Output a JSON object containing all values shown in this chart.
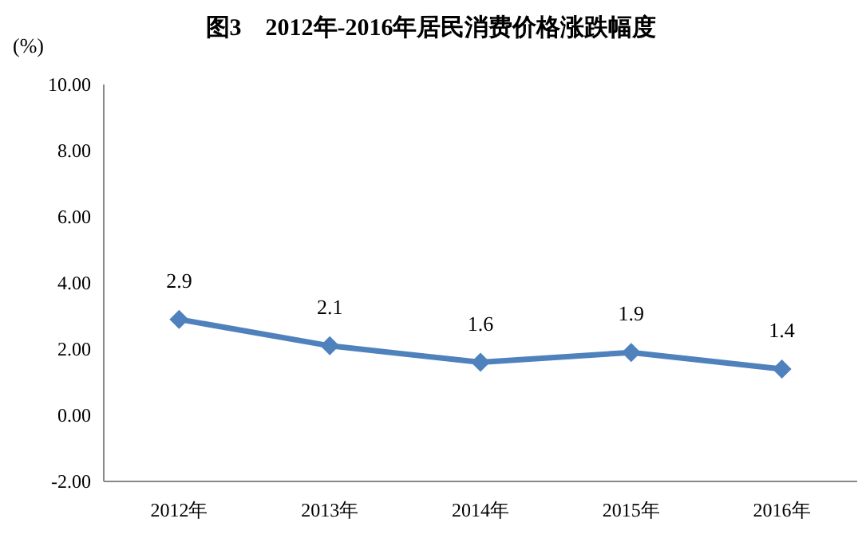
{
  "chart_data": {
    "type": "line",
    "title": "图3　2012年-2016年居民消费价格涨跌幅度",
    "ylabel": "(%)",
    "categories": [
      "2012年",
      "2013年",
      "2014年",
      "2015年",
      "2016年"
    ],
    "series": [
      {
        "color": "#4f81bd",
        "values": [
          2.9,
          2.1,
          1.6,
          1.9,
          1.4
        ]
      }
    ],
    "ylim": [
      -2,
      10
    ],
    "yticks": [
      {
        "value": -2,
        "label": "-2.00"
      },
      {
        "value": 0,
        "label": "0.00"
      },
      {
        "value": 2,
        "label": "2.00"
      },
      {
        "value": 4,
        "label": "4.00"
      },
      {
        "value": 6,
        "label": "6.00"
      },
      {
        "value": 8,
        "label": "8.00"
      },
      {
        "value": 10,
        "label": "10.00"
      }
    ],
    "grid": false,
    "marker": "diamond",
    "line_style": "solid",
    "data_labels": true
  }
}
